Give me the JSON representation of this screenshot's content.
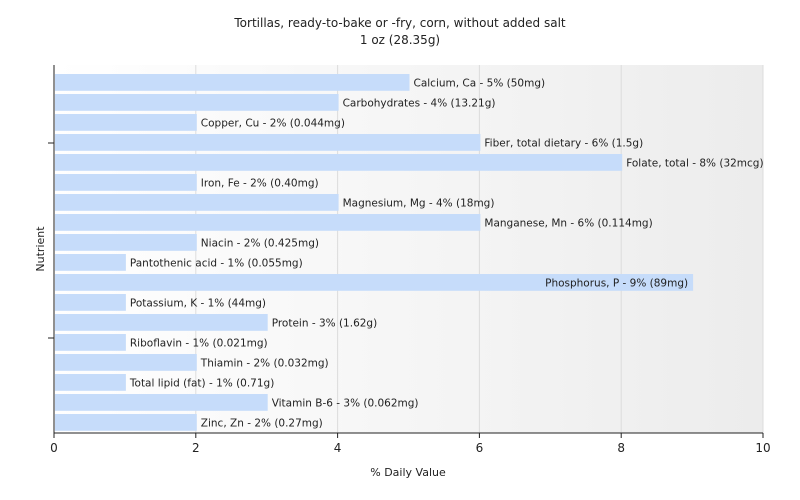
{
  "chart_data": {
    "type": "bar",
    "orientation": "horizontal",
    "title": "Tortillas, ready-to-bake or -fry, corn, without added salt",
    "subtitle": "1 oz (28.35g)",
    "xlabel": "% Daily Value",
    "ylabel": "Nutrient",
    "xlim": [
      0,
      10
    ],
    "xticks": [
      0,
      2,
      4,
      6,
      8,
      10
    ],
    "grid": true,
    "categories": [
      "Calcium, Ca",
      "Carbohydrates",
      "Copper, Cu",
      "Fiber, total dietary",
      "Folate, total",
      "Iron, Fe",
      "Magnesium, Mg",
      "Manganese, Mn",
      "Niacin",
      "Pantothenic acid",
      "Phosphorus, P",
      "Potassium, K",
      "Protein",
      "Riboflavin",
      "Thiamin",
      "Total lipid (fat)",
      "Vitamin B-6",
      "Zinc, Zn"
    ],
    "values": [
      5,
      4,
      2,
      6,
      8,
      2,
      4,
      6,
      2,
      1,
      9,
      1,
      3,
      1,
      2,
      1,
      3,
      2
    ],
    "labels": [
      "Calcium, Ca - 5% (50mg)",
      "Carbohydrates - 4% (13.21g)",
      "Copper, Cu - 2% (0.044mg)",
      "Fiber, total dietary - 6% (1.5g)",
      "Folate, total - 8% (32mcg)",
      "Iron, Fe - 2% (0.40mg)",
      "Magnesium, Mg - 4% (18mg)",
      "Manganese, Mn - 6% (0.114mg)",
      "Niacin - 2% (0.425mg)",
      "Pantothenic acid - 1% (0.055mg)",
      "Phosphorus, P - 9% (89mg)",
      "Potassium, K - 1% (44mg)",
      "Protein - 3% (1.62g)",
      "Riboflavin - 1% (0.021mg)",
      "Thiamin - 2% (0.032mg)",
      "Total lipid (fat) - 1% (0.71g)",
      "Vitamin B-6 - 3% (0.062mg)",
      "Zinc, Zn - 2% (0.27mg)"
    ],
    "colors": {
      "bar": "#c6dcfa",
      "axis": "#222222",
      "grid": "#dcdcdc"
    }
  }
}
